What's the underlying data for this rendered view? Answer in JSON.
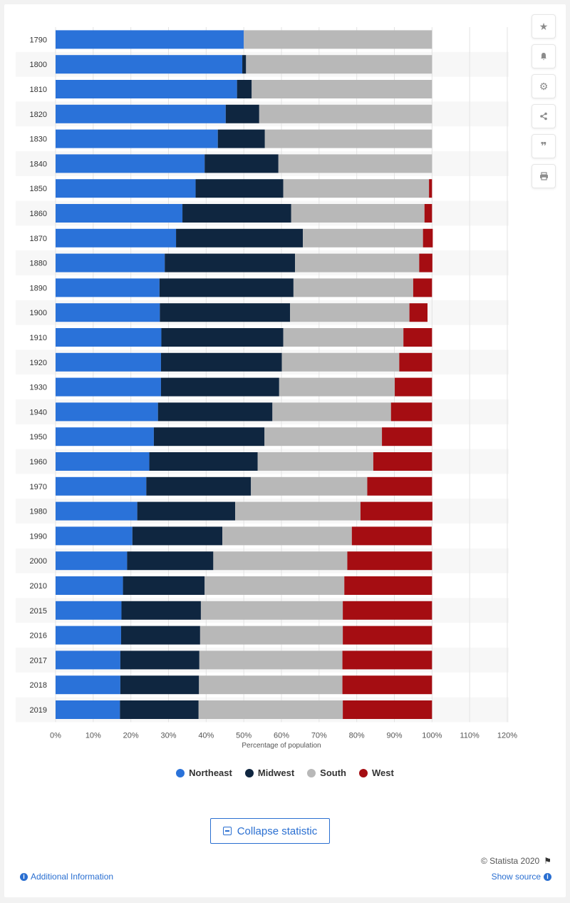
{
  "colors": {
    "Northeast": "#2a72d9",
    "Midwest": "#0f2640",
    "South": "#b8b8b8",
    "West": "#a50d12",
    "stripe": "#f7f7f7",
    "grid": "#e3e3e3"
  },
  "toolbar": {
    "icons": [
      "star-icon",
      "bell-icon",
      "gear-icon",
      "share-icon",
      "quote-icon",
      "print-icon"
    ]
  },
  "chart_data": {
    "type": "bar",
    "orientation": "horizontal",
    "stacked": true,
    "categories": [
      "1790",
      "1800",
      "1810",
      "1820",
      "1830",
      "1840",
      "1850",
      "1860",
      "1870",
      "1880",
      "1890",
      "1900",
      "1910",
      "1920",
      "1930",
      "1940",
      "1950",
      "1960",
      "1970",
      "1980",
      "1990",
      "2000",
      "2010",
      "2015",
      "2016",
      "2017",
      "2018",
      "2019"
    ],
    "series": [
      {
        "name": "Northeast",
        "values": [
          50,
          49.6,
          48.2,
          45.2,
          43.1,
          39.6,
          37.2,
          33.7,
          32,
          29,
          27.6,
          27.7,
          28.1,
          28,
          28,
          27.2,
          26.1,
          24.9,
          24.1,
          21.7,
          20.4,
          19,
          17.9,
          17.5,
          17.4,
          17.2,
          17.2,
          17.1
        ]
      },
      {
        "name": "Midwest",
        "values": [
          0,
          1,
          3.9,
          8.9,
          12.5,
          19.6,
          23.3,
          28.9,
          33.7,
          34.6,
          35.6,
          34.6,
          32.4,
          32.1,
          31.4,
          30.4,
          29.4,
          28.8,
          27.8,
          26,
          23.9,
          22.9,
          21.7,
          21.1,
          21,
          21,
          20.9,
          20.9
        ]
      },
      {
        "name": "South",
        "values": [
          50,
          49.4,
          47.9,
          45.9,
          44.4,
          40.8,
          38.7,
          35.4,
          31.9,
          33,
          31.8,
          31.7,
          31.9,
          31.2,
          30.7,
          31.5,
          31.2,
          30.7,
          30.9,
          33.3,
          34.4,
          35.6,
          37.1,
          37.7,
          37.9,
          38,
          38.1,
          38.3
        ]
      },
      {
        "name": "West",
        "values": [
          0,
          0,
          0,
          0,
          0,
          0,
          0.8,
          2,
          2.6,
          3.5,
          5,
          4.8,
          7.6,
          8.7,
          9.9,
          10.9,
          13.3,
          15.6,
          17.2,
          19.1,
          21.2,
          22.5,
          23.3,
          23.7,
          23.7,
          23.8,
          23.8,
          23.7
        ]
      }
    ],
    "xlim": [
      0,
      120
    ],
    "xticks": [
      0,
      10,
      20,
      30,
      40,
      50,
      60,
      70,
      80,
      90,
      100,
      110,
      120
    ],
    "tick_suffix": "%",
    "xlabel": "Percentage of population",
    "ylabel": "",
    "grid": true,
    "legend_position": "bottom"
  },
  "legend": {
    "items": [
      "Northeast",
      "Midwest",
      "South",
      "West"
    ]
  },
  "collapse_button": {
    "label": "Collapse statistic"
  },
  "footer": {
    "credit": "© Statista 2020",
    "additional_info": "Additional Information",
    "show_source": "Show source"
  }
}
